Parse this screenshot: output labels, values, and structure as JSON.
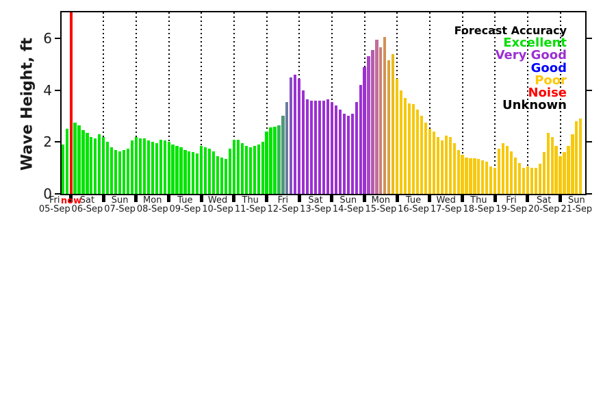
{
  "y_axis": {
    "label": "Wave Height, ft",
    "ticks": [
      0,
      2,
      4,
      6
    ],
    "max": 7
  },
  "now_marker": {
    "label": "now",
    "color": "#FF0000"
  },
  "legend": {
    "title": "Forecast Accuracy",
    "entries": [
      {
        "label": "Excellent",
        "color": "#00DD00"
      },
      {
        "label": "Very Good",
        "color": "#9B30D2"
      },
      {
        "label": "Good",
        "color": "#0000FF"
      },
      {
        "label": "Poor",
        "color": "#FFC800"
      },
      {
        "label": "Noise",
        "color": "#FF0000"
      },
      {
        "label": "Unknown",
        "color": "#000000"
      }
    ]
  },
  "x_axis": {
    "days": [
      {
        "name": "Fri",
        "date": "05-Sep"
      },
      {
        "name": "Sat",
        "date": "06-Sep"
      },
      {
        "name": "Sun",
        "date": "07-Sep"
      },
      {
        "name": "Mon",
        "date": "08-Sep"
      },
      {
        "name": "Tue",
        "date": "09-Sep"
      },
      {
        "name": "Wed",
        "date": "10-Sep"
      },
      {
        "name": "Thu",
        "date": "11-Sep"
      },
      {
        "name": "Fri",
        "date": "12-Sep"
      },
      {
        "name": "Sat",
        "date": "13-Sep"
      },
      {
        "name": "Sun",
        "date": "14-Sep"
      },
      {
        "name": "Mon",
        "date": "15-Sep"
      },
      {
        "name": "Tue",
        "date": "16-Sep"
      },
      {
        "name": "Wed",
        "date": "17-Sep"
      },
      {
        "name": "Thu",
        "date": "18-Sep"
      },
      {
        "name": "Fri",
        "date": "19-Sep"
      },
      {
        "name": "Sat",
        "date": "20-Sep"
      },
      {
        "name": "Sun",
        "date": "21-Sep"
      }
    ]
  },
  "chart_data": {
    "type": "bar",
    "title": "",
    "xlabel": "",
    "ylabel": "Wave Height, ft",
    "ylim": [
      0,
      7
    ],
    "y_ticks": [
      0,
      2,
      4,
      6
    ],
    "grid": "vertical-dotted-daily",
    "legend_position": "top-right-inside",
    "x_start": "05-Sep 18:00",
    "interval_hours": 3,
    "categories": [
      "05-Sep",
      "06-Sep",
      "07-Sep",
      "08-Sep",
      "09-Sep",
      "10-Sep",
      "11-Sep",
      "12-Sep",
      "13-Sep",
      "14-Sep",
      "15-Sep",
      "16-Sep",
      "17-Sep",
      "18-Sep",
      "19-Sep",
      "20-Sep",
      "21-Sep"
    ],
    "values": [
      1.9,
      2.5,
      2.8,
      2.75,
      2.65,
      2.45,
      2.35,
      2.2,
      2.15,
      2.3,
      2.2,
      2.0,
      1.8,
      1.7,
      1.65,
      1.7,
      1.75,
      2.05,
      2.2,
      2.15,
      2.15,
      2.05,
      2.0,
      1.95,
      2.1,
      2.05,
      2.0,
      1.9,
      1.85,
      1.8,
      1.7,
      1.65,
      1.6,
      1.55,
      1.85,
      1.8,
      1.75,
      1.65,
      1.45,
      1.4,
      1.35,
      1.75,
      2.1,
      2.1,
      1.95,
      1.85,
      1.8,
      1.85,
      1.9,
      2.0,
      2.4,
      2.55,
      2.6,
      2.65,
      3.0,
      3.55,
      4.5,
      4.6,
      4.45,
      4.0,
      3.65,
      3.6,
      3.6,
      3.6,
      3.6,
      3.65,
      3.55,
      3.4,
      3.25,
      3.1,
      3.0,
      3.1,
      3.55,
      4.2,
      4.9,
      5.3,
      5.55,
      5.95,
      5.65,
      6.05,
      5.15,
      5.4,
      4.45,
      4.0,
      3.7,
      3.5,
      3.45,
      3.25,
      3.0,
      2.75,
      2.5,
      2.4,
      2.2,
      2.05,
      2.25,
      2.2,
      1.95,
      1.7,
      1.5,
      1.4,
      1.37,
      1.37,
      1.35,
      1.3,
      1.25,
      1.05,
      1.0,
      1.75,
      1.95,
      1.85,
      1.65,
      1.4,
      1.2,
      1.0,
      1.05,
      1.0,
      1.0,
      1.15,
      1.6,
      2.35,
      2.2,
      1.85,
      1.45,
      1.6,
      1.85,
      2.3,
      2.8,
      2.9
    ],
    "bar_colors": [
      "#00E400",
      "#00E400",
      "#00E400",
      "#00E400",
      "#00E400",
      "#00E400",
      "#00E400",
      "#00E400",
      "#00E400",
      "#00E400",
      "#00E400",
      "#00E400",
      "#00E400",
      "#00E400",
      "#00E400",
      "#00E400",
      "#00E400",
      "#00E400",
      "#00E400",
      "#00E400",
      "#00E400",
      "#00E400",
      "#00E400",
      "#00E400",
      "#00E400",
      "#00E400",
      "#00E400",
      "#00E400",
      "#00E400",
      "#00E400",
      "#00E400",
      "#00E400",
      "#00E400",
      "#00E400",
      "#00E400",
      "#00E400",
      "#00E400",
      "#00E400",
      "#00E400",
      "#00E400",
      "#00E400",
      "#00E400",
      "#00E400",
      "#00E400",
      "#00E400",
      "#00E400",
      "#00E400",
      "#00E400",
      "#00E400",
      "#00E400",
      "#00E400",
      "#00E400",
      "#00E400",
      "#35B755",
      "#4F9878",
      "#687D9E",
      "#8350C0",
      "#9B30D2",
      "#9B30D2",
      "#9B30D2",
      "#9B30D2",
      "#9B30D2",
      "#9B30D2",
      "#9B30D2",
      "#9B30D2",
      "#9B30D2",
      "#9B30D2",
      "#9B30D2",
      "#9B30D2",
      "#9B30D2",
      "#9B30D2",
      "#9B30D2",
      "#9B30D2",
      "#9B30D2",
      "#9B30D2",
      "#A846C4",
      "#B55BB0",
      "#C26E99",
      "#CB7F79",
      "#D39055",
      "#DCA336",
      "#E9BA1C",
      "#F7C80C",
      "#F7C80C",
      "#F7C80C",
      "#F7C80C",
      "#F7C80C",
      "#F7C80C",
      "#F7C80C",
      "#F7C80C",
      "#F7C80C",
      "#F7C80C",
      "#F7C80C",
      "#F7C80C",
      "#F7C80C",
      "#F7C80C",
      "#F7C80C",
      "#F7C80C",
      "#F7C80C",
      "#F7C80C",
      "#F7C80C",
      "#F7C80C",
      "#F7C80C",
      "#F7C80C",
      "#F7C80C",
      "#F7C80C",
      "#F7C80C",
      "#F7C80C",
      "#F7C80C",
      "#F7C80C",
      "#F7C80C",
      "#F7C80C",
      "#F7C80C",
      "#F7C80C",
      "#F7C80C",
      "#F7C80C",
      "#F7C80C",
      "#F7C80C",
      "#F7C80C",
      "#F7C80C",
      "#F7C80C",
      "#F7C80C",
      "#F7C80C",
      "#F7C80C",
      "#F7C80C",
      "#F7C80C",
      "#F7C80C",
      "#F7C80C"
    ]
  }
}
